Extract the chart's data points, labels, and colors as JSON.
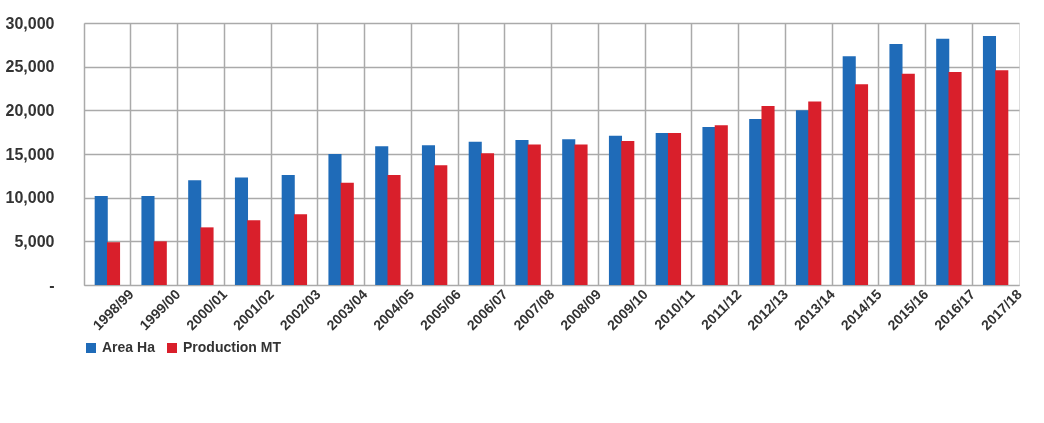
{
  "chart_data": {
    "type": "bar",
    "categories": [
      "1998/99",
      "1999/00",
      "2000/01",
      "2001/02",
      "2002/03",
      "2003/04",
      "2004/05",
      "2005/06",
      "2006/07",
      "2007/08",
      "2008/09",
      "2009/10",
      "2010/11",
      "2011/12",
      "2012/13",
      "2013/14",
      "2014/15",
      "2015/16",
      "2016/17",
      "2017/18"
    ],
    "series": [
      {
        "name": "Area Ha",
        "color": "#1f6bb8",
        "values": [
          10200,
          10200,
          12000,
          12300,
          12600,
          15000,
          15900,
          16000,
          16400,
          16600,
          16700,
          17100,
          17400,
          18100,
          19000,
          20000,
          26200,
          27600,
          28200,
          28500
        ]
      },
      {
        "name": "Production MT",
        "color": "#d91f2b",
        "values": [
          4900,
          5000,
          6600,
          7400,
          8100,
          11700,
          12600,
          13700,
          15100,
          16100,
          16100,
          16500,
          17400,
          18300,
          20500,
          21000,
          23000,
          24200,
          24400,
          24600
        ]
      }
    ],
    "ylim": [
      0,
      30000
    ],
    "yticks": [
      {
        "value": 0,
        "label": "-"
      },
      {
        "value": 5000,
        "label": "5,000"
      },
      {
        "value": 10000,
        "label": "10,000"
      },
      {
        "value": 15000,
        "label": "15,000"
      },
      {
        "value": 20000,
        "label": "20,000"
      },
      {
        "value": 25000,
        "label": "25,000"
      },
      {
        "value": 30000,
        "label": "30,000"
      }
    ],
    "grid": true,
    "legend": "bottom"
  }
}
